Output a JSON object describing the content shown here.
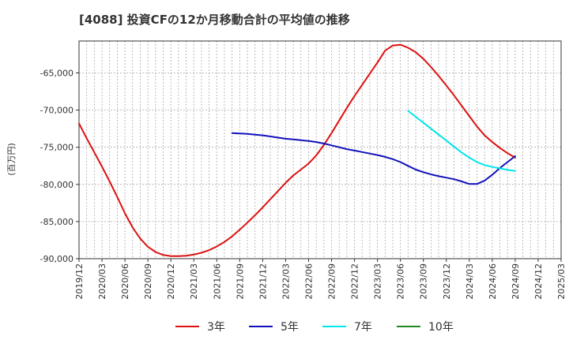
{
  "chart_data": {
    "type": "line",
    "title": "[4088]  投資CFの12か月移動合計の平均値の推移",
    "ylabel": "(百万円)",
    "xlabel": "",
    "ylim": [
      -90000,
      -60700
    ],
    "yticks": [
      -65000,
      -70000,
      -75000,
      -80000,
      -85000,
      -90000
    ],
    "ytick_labels": [
      "-65,000",
      "-70,000",
      "-75,000",
      "-80,000",
      "-85,000",
      "-90,000"
    ],
    "x_start": "2019-12",
    "x_end": "2025-03",
    "xtick_labels": [
      "2019/12",
      "2020/03",
      "2020/06",
      "2020/09",
      "2020/12",
      "2021/03",
      "2021/06",
      "2021/09",
      "2021/12",
      "2022/03",
      "2022/06",
      "2022/09",
      "2022/12",
      "2023/03",
      "2023/06",
      "2023/09",
      "2023/12",
      "2024/03",
      "2024/06",
      "2024/09",
      "2024/12",
      "2025/03"
    ],
    "grid": true,
    "legend_position": "bottom",
    "series": [
      {
        "name": "3年",
        "color": "#dd1111",
        "points": [
          [
            "2019-12",
            -71800
          ],
          [
            "2020-01",
            -73800
          ],
          [
            "2020-02",
            -75700
          ],
          [
            "2020-03",
            -77600
          ],
          [
            "2020-04",
            -79600
          ],
          [
            "2020-05",
            -81700
          ],
          [
            "2020-06",
            -83900
          ],
          [
            "2020-07",
            -85800
          ],
          [
            "2020-08",
            -87300
          ],
          [
            "2020-09",
            -88400
          ],
          [
            "2020-10",
            -89100
          ],
          [
            "2020-11",
            -89500
          ],
          [
            "2020-12",
            -89650
          ],
          [
            "2021-01",
            -89650
          ],
          [
            "2021-02",
            -89600
          ],
          [
            "2021-03",
            -89450
          ],
          [
            "2021-04",
            -89200
          ],
          [
            "2021-05",
            -88850
          ],
          [
            "2021-06",
            -88350
          ],
          [
            "2021-07",
            -87750
          ],
          [
            "2021-08",
            -87000
          ],
          [
            "2021-09",
            -86100
          ],
          [
            "2021-10",
            -85150
          ],
          [
            "2021-11",
            -84150
          ],
          [
            "2021-12",
            -83100
          ],
          [
            "2022-01",
            -82000
          ],
          [
            "2022-02",
            -80900
          ],
          [
            "2022-03",
            -79800
          ],
          [
            "2022-04",
            -78800
          ],
          [
            "2022-05",
            -78000
          ],
          [
            "2022-06",
            -77200
          ],
          [
            "2022-07",
            -76100
          ],
          [
            "2022-08",
            -74700
          ],
          [
            "2022-09",
            -73100
          ],
          [
            "2022-10",
            -71400
          ],
          [
            "2022-11",
            -69700
          ],
          [
            "2022-12",
            -68100
          ],
          [
            "2023-01",
            -66600
          ],
          [
            "2023-02",
            -65100
          ],
          [
            "2023-03",
            -63600
          ],
          [
            "2023-04",
            -62000
          ],
          [
            "2023-05",
            -61300
          ],
          [
            "2023-06",
            -61200
          ],
          [
            "2023-07",
            -61600
          ],
          [
            "2023-08",
            -62200
          ],
          [
            "2023-09",
            -63100
          ],
          [
            "2023-10",
            -64200
          ],
          [
            "2023-11",
            -65400
          ],
          [
            "2023-12",
            -66700
          ],
          [
            "2024-01",
            -68000
          ],
          [
            "2024-02",
            -69400
          ],
          [
            "2024-03",
            -70800
          ],
          [
            "2024-04",
            -72200
          ],
          [
            "2024-05",
            -73400
          ],
          [
            "2024-06",
            -74300
          ],
          [
            "2024-07",
            -75100
          ],
          [
            "2024-08",
            -75800
          ],
          [
            "2024-09",
            -76400
          ]
        ]
      },
      {
        "name": "5年",
        "color": "#1111bb",
        "points": [
          [
            "2021-08",
            -73100
          ],
          [
            "2021-09",
            -73150
          ],
          [
            "2021-10",
            -73200
          ],
          [
            "2021-11",
            -73300
          ],
          [
            "2021-12",
            -73400
          ],
          [
            "2022-01",
            -73550
          ],
          [
            "2022-02",
            -73700
          ],
          [
            "2022-03",
            -73850
          ],
          [
            "2022-04",
            -73950
          ],
          [
            "2022-05",
            -74050
          ],
          [
            "2022-06",
            -74150
          ],
          [
            "2022-07",
            -74300
          ],
          [
            "2022-08",
            -74500
          ],
          [
            "2022-09",
            -74750
          ],
          [
            "2022-10",
            -75000
          ],
          [
            "2022-11",
            -75250
          ],
          [
            "2022-12",
            -75450
          ],
          [
            "2023-01",
            -75650
          ],
          [
            "2023-02",
            -75850
          ],
          [
            "2023-03",
            -76050
          ],
          [
            "2023-04",
            -76300
          ],
          [
            "2023-05",
            -76600
          ],
          [
            "2023-06",
            -77000
          ],
          [
            "2023-07",
            -77500
          ],
          [
            "2023-08",
            -78000
          ],
          [
            "2023-09",
            -78350
          ],
          [
            "2023-10",
            -78650
          ],
          [
            "2023-11",
            -78900
          ],
          [
            "2023-12",
            -79100
          ],
          [
            "2024-01",
            -79300
          ],
          [
            "2024-02",
            -79600
          ],
          [
            "2024-03",
            -79950
          ],
          [
            "2024-04",
            -79950
          ],
          [
            "2024-05",
            -79500
          ],
          [
            "2024-06",
            -78700
          ],
          [
            "2024-07",
            -77800
          ],
          [
            "2024-08",
            -77000
          ],
          [
            "2024-09",
            -76200
          ]
        ]
      },
      {
        "name": "7年",
        "color": "#00e5ee",
        "points": [
          [
            "2023-07",
            -70100
          ],
          [
            "2023-08",
            -70900
          ],
          [
            "2023-09",
            -71700
          ],
          [
            "2023-10",
            -72500
          ],
          [
            "2023-11",
            -73300
          ],
          [
            "2023-12",
            -74100
          ],
          [
            "2024-01",
            -74900
          ],
          [
            "2024-02",
            -75700
          ],
          [
            "2024-03",
            -76400
          ],
          [
            "2024-04",
            -77000
          ],
          [
            "2024-05",
            -77400
          ],
          [
            "2024-06",
            -77650
          ],
          [
            "2024-07",
            -77850
          ],
          [
            "2024-08",
            -78050
          ],
          [
            "2024-09",
            -78200
          ]
        ]
      },
      {
        "name": "10年",
        "color": "#228822",
        "points": []
      }
    ]
  }
}
